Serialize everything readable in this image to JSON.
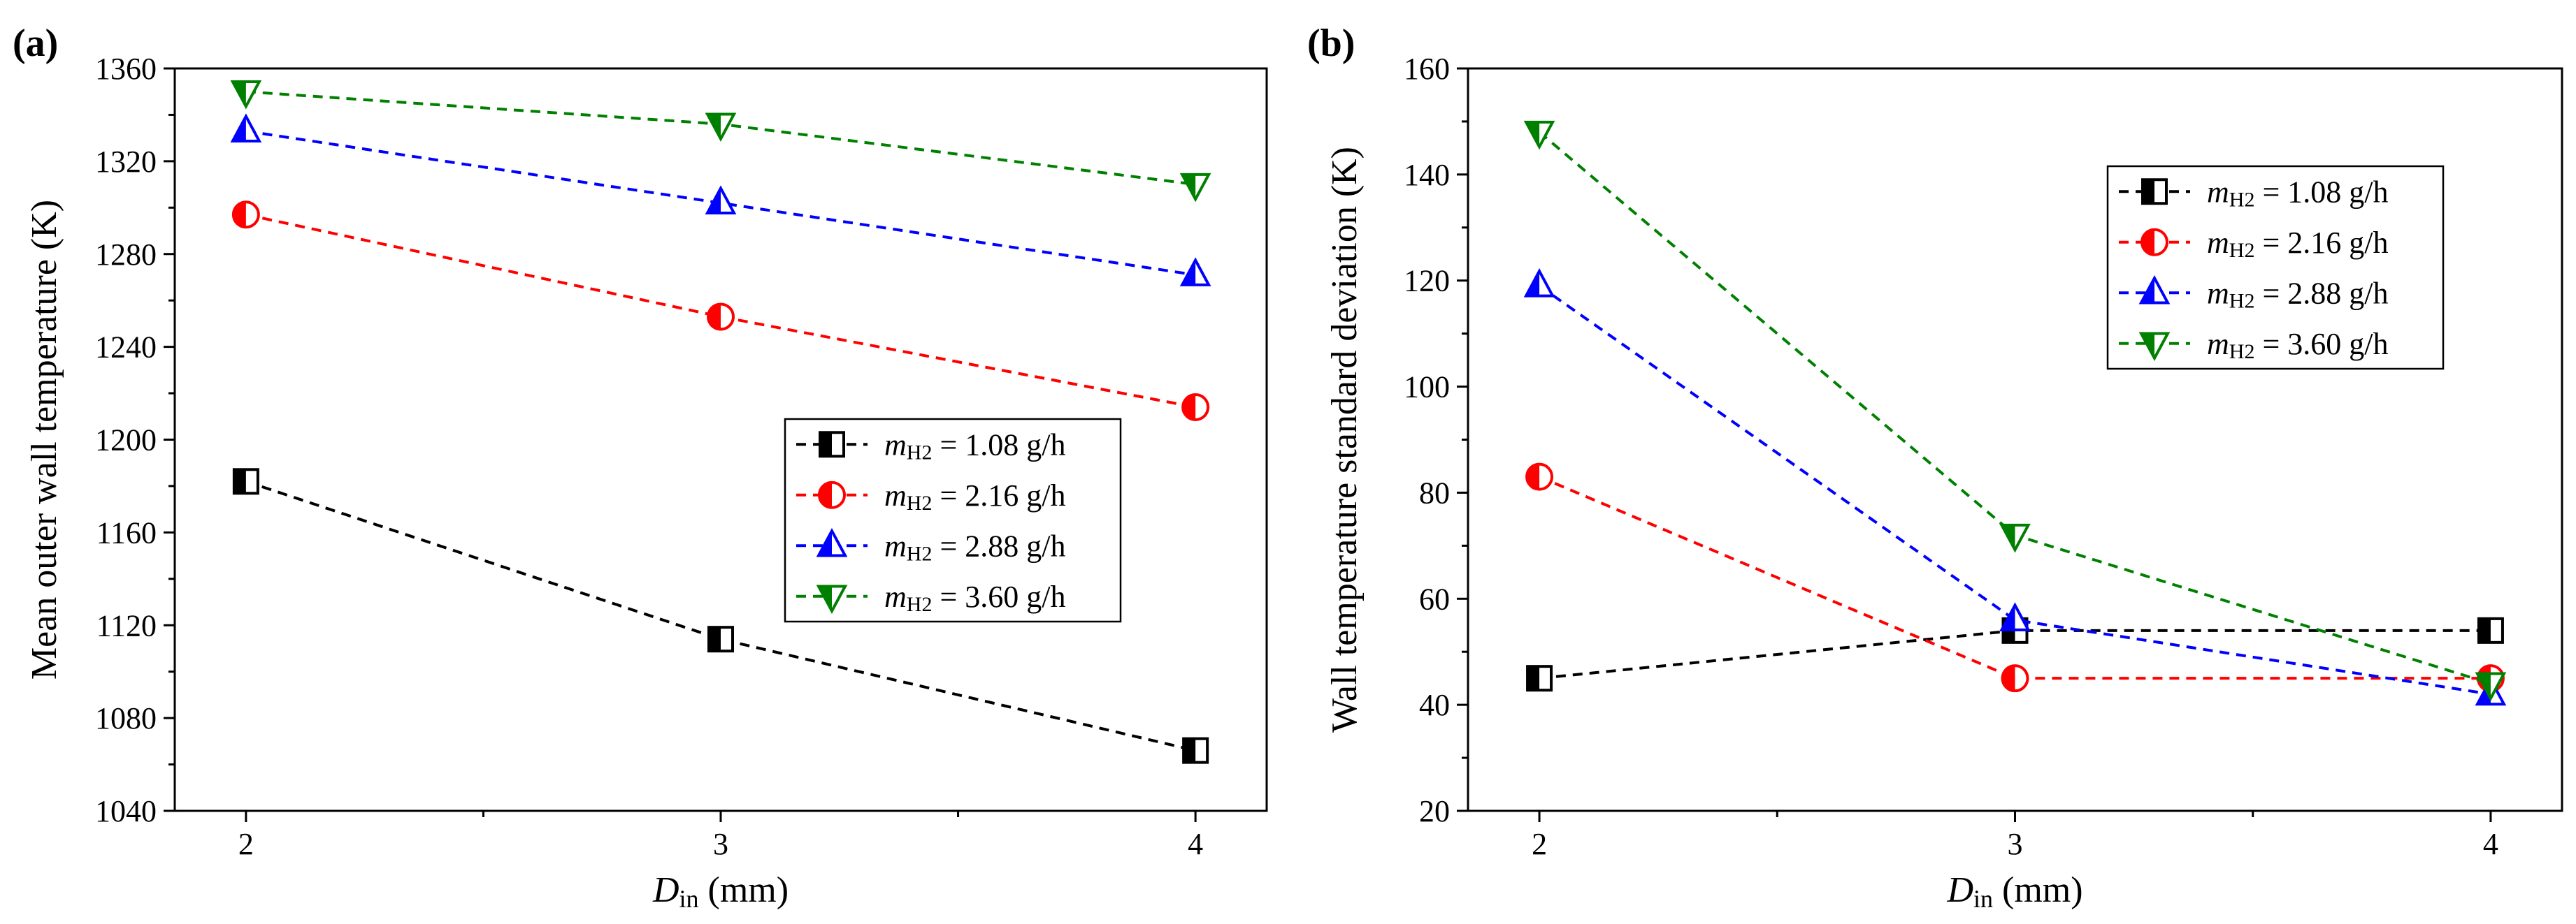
{
  "chart_data": [
    {
      "panel_label": "(a)",
      "type": "line",
      "xlabel": {
        "main": "D",
        "sub": "in",
        "unit": " (mm)"
      },
      "ylabel": "Mean outer wall temperature (K)",
      "x": [
        2,
        3,
        4
      ],
      "xticks": [
        "2",
        "3",
        "4"
      ],
      "xlim": [
        1.85,
        4.15
      ],
      "ylim": [
        1040,
        1360
      ],
      "yticks": [
        "1040",
        "1080",
        "1120",
        "1160",
        "1200",
        "1240",
        "1280",
        "1320",
        "1360"
      ],
      "legend_position": "lower-right",
      "series": [
        {
          "name": "m_H2 = 1.08 g/h",
          "var": "m",
          "sub": "H2",
          "label": " = 1.08 g/h",
          "color": "#000000",
          "marker": "half-square",
          "values": [
            1182,
            1114,
            1066
          ]
        },
        {
          "name": "m_H2 = 2.16 g/h",
          "var": "m",
          "sub": "H2",
          "label": " = 2.16 g/h",
          "color": "#ff0000",
          "marker": "half-circle",
          "values": [
            1297,
            1253,
            1214
          ]
        },
        {
          "name": "m_H2 = 2.88 g/h",
          "var": "m",
          "sub": "H2",
          "label": " = 2.88 g/h",
          "color": "#0000ff",
          "marker": "half-triangle-up",
          "values": [
            1333,
            1302,
            1271
          ]
        },
        {
          "name": "m_H2 = 3.60 g/h",
          "var": "m",
          "sub": "H2",
          "label": " = 3.60 g/h",
          "color": "#008000",
          "marker": "half-triangle-down",
          "values": [
            1350,
            1336,
            1310
          ]
        }
      ]
    },
    {
      "panel_label": "(b)",
      "type": "line",
      "xlabel": {
        "main": "D",
        "sub": "in",
        "unit": " (mm)"
      },
      "ylabel": "Wall temperature standard deviation (K)",
      "x": [
        2,
        3,
        4
      ],
      "xticks": [
        "2",
        "3",
        "4"
      ],
      "xlim": [
        1.85,
        4.15
      ],
      "ylim": [
        20,
        160
      ],
      "yticks": [
        "20",
        "40",
        "60",
        "80",
        "100",
        "120",
        "140",
        "160"
      ],
      "legend_position": "upper-right",
      "series": [
        {
          "name": "m_H2 = 1.08 g/h",
          "var": "m",
          "sub": "H2",
          "label": " = 1.08 g/h",
          "color": "#000000",
          "marker": "half-square",
          "values": [
            45,
            54,
            54
          ]
        },
        {
          "name": "m_H2 = 2.16 g/h",
          "var": "m",
          "sub": "H2",
          "label": " = 2.16 g/h",
          "color": "#ff0000",
          "marker": "half-circle",
          "values": [
            83,
            45,
            45
          ]
        },
        {
          "name": "m_H2 = 2.88 g/h",
          "var": "m",
          "sub": "H2",
          "label": " = 2.88 g/h",
          "color": "#0000ff",
          "marker": "half-triangle-up",
          "values": [
            119,
            56,
            42
          ]
        },
        {
          "name": "m_H2 = 3.60 g/h",
          "var": "m",
          "sub": "H2",
          "label": " = 3.60 g/h",
          "color": "#008000",
          "marker": "half-triangle-down",
          "values": [
            148,
            72,
            44
          ]
        }
      ]
    }
  ]
}
